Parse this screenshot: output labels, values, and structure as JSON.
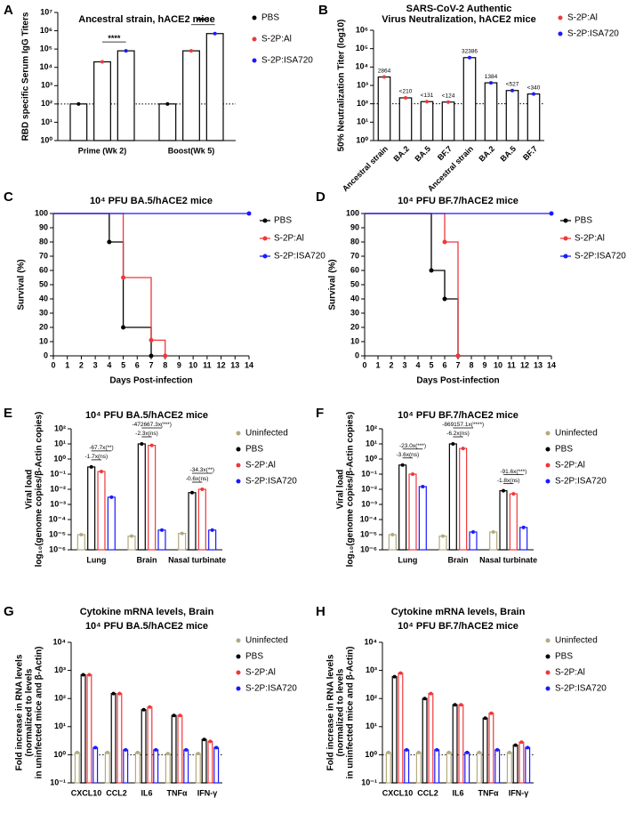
{
  "chart_data": [
    {
      "panel": "A",
      "type": "bar",
      "title": "Ancestral strain, hACE2 mice",
      "ylabel": "RBD specific Serum IgG Titers",
      "categories": [
        "Prime (Wk 2)",
        "Boost(Wk 5)"
      ],
      "log": true,
      "bar_edge": "#000000",
      "reference_line": 100,
      "series": [
        {
          "name": "PBS",
          "color": "#000000",
          "values": [
            100,
            100
          ]
        },
        {
          "name": "S-2P:Al",
          "color": "#f0373a",
          "values": [
            20000,
            80000
          ]
        },
        {
          "name": "S-2P:ISA720",
          "color": "#1a1aff",
          "values": [
            80000,
            700000
          ]
        }
      ],
      "ylim": [
        1,
        10000000
      ],
      "yticks": [
        {
          "value": 1,
          "label": "10⁰"
        },
        {
          "value": 10,
          "label": "10¹"
        },
        {
          "value": 100,
          "label": "10²"
        },
        {
          "value": 1000,
          "label": "10³"
        },
        {
          "value": 10000,
          "label": "10⁴"
        },
        {
          "value": 100000,
          "label": "10⁵"
        },
        {
          "value": 1000000,
          "label": "10⁶"
        },
        {
          "value": 10000000,
          "label": "10⁷"
        }
      ],
      "annotations": [
        "****",
        "****"
      ]
    },
    {
      "panel": "B",
      "type": "bar",
      "title": [
        "SARS-CoV-2 Authentic",
        "Virus Neutralization, hACE2 mice"
      ],
      "ylabel": "50% Neutralization Titer (log10)",
      "categories": [
        "Ancestral strain",
        "BA.2",
        "BA.5",
        "BF.7",
        "Ancestral strain",
        "BA.2",
        "BA.5",
        "BF.7"
      ],
      "log": true,
      "bar_edge": "#000000",
      "reference_line": 100,
      "rotate_categories": true,
      "series": [
        {
          "name": "S-2P:Al",
          "color": "#f0373a",
          "values": [
            2864,
            210,
            131,
            124,
            null,
            null,
            null,
            null
          ],
          "value_labels": [
            "2864",
            "<210",
            "<131",
            "<124",
            null,
            null,
            null,
            null
          ]
        },
        {
          "name": "S-2P:ISA720",
          "color": "#1a1aff",
          "values": [
            null,
            null,
            null,
            null,
            32386,
            1384,
            527,
            340
          ],
          "value_labels": [
            null,
            null,
            null,
            null,
            "32386",
            "1384",
            "<527",
            "<340"
          ]
        }
      ],
      "ylim": [
        1,
        1000000
      ],
      "yticks": [
        {
          "value": 1,
          "label": "10⁰"
        },
        {
          "value": 10,
          "label": "10¹"
        },
        {
          "value": 100,
          "label": "10²"
        },
        {
          "value": 1000,
          "label": "10³"
        },
        {
          "value": 10000,
          "label": "10⁴"
        },
        {
          "value": 100000,
          "label": "10⁵"
        },
        {
          "value": 1000000,
          "label": "10⁶"
        }
      ]
    },
    {
      "panel": "C",
      "type": "line",
      "title": "10⁴ PFU BA.5/hACE2 mice",
      "xlabel": "Days Post-infection",
      "ylabel": "Survival (%)",
      "series": [
        {
          "name": "PBS",
          "color": "#000000",
          "x": [
            0,
            4,
            5,
            7
          ],
          "values": [
            100,
            80,
            20,
            0
          ]
        },
        {
          "name": "S-2P:Al",
          "color": "#f0373a",
          "x": [
            0,
            5,
            7,
            8
          ],
          "values": [
            100,
            55,
            11,
            0
          ]
        },
        {
          "name": "S-2P:ISA720",
          "color": "#1a1aff",
          "x": [
            0,
            14
          ],
          "values": [
            100,
            100
          ]
        }
      ],
      "xlim": [
        0,
        14
      ],
      "xticks": [
        0,
        1,
        2,
        3,
        4,
        5,
        6,
        7,
        8,
        9,
        10,
        11,
        12,
        13,
        14
      ],
      "ylim": [
        0,
        100
      ],
      "yticks": [
        0,
        10,
        20,
        30,
        40,
        50,
        60,
        70,
        80,
        90,
        100
      ]
    },
    {
      "panel": "D",
      "type": "line",
      "title": "10⁴ PFU BF.7/hACE2 mice",
      "xlabel": "Days Post-infection",
      "ylabel": "Survival (%)",
      "series": [
        {
          "name": "PBS",
          "color": "#000000",
          "x": [
            0,
            5,
            6,
            7
          ],
          "values": [
            100,
            60,
            40,
            0
          ]
        },
        {
          "name": "S-2P:Al",
          "color": "#f0373a",
          "x": [
            0,
            6,
            7
          ],
          "values": [
            100,
            80,
            0
          ]
        },
        {
          "name": "S-2P:ISA720",
          "color": "#1a1aff",
          "x": [
            0,
            14
          ],
          "values": [
            100,
            100
          ]
        }
      ],
      "xlim": [
        0,
        14
      ],
      "xticks": [
        0,
        1,
        2,
        3,
        4,
        5,
        6,
        7,
        8,
        9,
        10,
        11,
        12,
        13,
        14
      ],
      "ylim": [
        0,
        100
      ],
      "yticks": [
        0,
        10,
        20,
        30,
        40,
        50,
        60,
        70,
        80,
        90,
        100
      ]
    },
    {
      "panel": "E",
      "type": "bar",
      "title": "10⁴ PFU BA.5/hACE2 mice",
      "ylabel": [
        "Viral load",
        "log₁₀(genome copies/β-Actin copies)"
      ],
      "categories": [
        "Lung",
        "Brain",
        "Nasal turbinate"
      ],
      "log": true,
      "series": [
        {
          "name": "Uninfected",
          "color": "#b3aa7e",
          "values": [
            1e-05,
            8e-06,
            1.2e-05
          ]
        },
        {
          "name": "PBS",
          "color": "#000000",
          "values": [
            0.3,
            10,
            0.006
          ]
        },
        {
          "name": "S-2P:Al",
          "color": "#f0373a",
          "values": [
            0.15,
            8,
            0.01
          ]
        },
        {
          "name": "S-2P:ISA720",
          "color": "#1a1aff",
          "values": [
            0.003,
            2e-05,
            2e-05
          ]
        }
      ],
      "ylim": [
        1e-06,
        100
      ],
      "yticks": [
        {
          "value": 1e-06,
          "label": "10⁻⁶"
        },
        {
          "value": 1e-05,
          "label": "10⁻⁵"
        },
        {
          "value": 0.0001,
          "label": "10⁻⁴"
        },
        {
          "value": 0.001,
          "label": "10⁻³"
        },
        {
          "value": 0.01,
          "label": "10⁻²"
        },
        {
          "value": 0.1,
          "label": "10⁻¹"
        },
        {
          "value": 1,
          "label": "10⁰"
        },
        {
          "value": 10,
          "label": "10¹"
        },
        {
          "value": 100,
          "label": "10²"
        }
      ],
      "annotations": [
        "-67.7x(**)",
        "-1.7x(ns)",
        "-472667.3x(***)",
        "-2.3x(ns)",
        "-34.3x(**)",
        "-0.6x(ns)"
      ]
    },
    {
      "panel": "F",
      "type": "bar",
      "title": "10⁴ PFU BF.7/hACE2 mice",
      "ylabel": [
        "Viral load",
        "log₁₀(genome copies/β-Actin copies)"
      ],
      "categories": [
        "Lung",
        "Brain",
        "Nasal turbinate"
      ],
      "log": true,
      "series": [
        {
          "name": "Uninfected",
          "color": "#b3aa7e",
          "values": [
            1e-05,
            8e-06,
            1.5e-05
          ]
        },
        {
          "name": "PBS",
          "color": "#000000",
          "values": [
            0.4,
            10,
            0.008
          ]
        },
        {
          "name": "S-2P:Al",
          "color": "#f0373a",
          "values": [
            0.1,
            5,
            0.005
          ]
        },
        {
          "name": "S-2P:ISA720",
          "color": "#1a1aff",
          "values": [
            0.015,
            1.5e-05,
            3e-05
          ]
        }
      ],
      "ylim": [
        1e-06,
        100
      ],
      "yticks": [
        {
          "value": 1e-06,
          "label": "10⁻⁶"
        },
        {
          "value": 1e-05,
          "label": "10⁻⁵"
        },
        {
          "value": 0.0001,
          "label": "10⁻⁴"
        },
        {
          "value": 0.001,
          "label": "10⁻³"
        },
        {
          "value": 0.01,
          "label": "10⁻²"
        },
        {
          "value": 0.1,
          "label": "10⁻¹"
        },
        {
          "value": 1,
          "label": "10⁰"
        },
        {
          "value": 10,
          "label": "10¹"
        },
        {
          "value": 100,
          "label": "10²"
        }
      ],
      "annotations": [
        "-23.0x(***)",
        "-3.6x(ns)",
        "-869157.1x(****)",
        "-6.2x(ns)",
        "-91.6x(***)",
        "-1.8x(ns)"
      ]
    },
    {
      "panel": "G",
      "type": "bar",
      "title": "Cytokine mRNA levels, Brain",
      "subtitle": "10⁴ PFU BA.5/hACE2 mice",
      "ylabel": [
        "Fold increase in RNA levels",
        "(normalized to levels",
        "in uninfected mice and β-Actin)"
      ],
      "categories": [
        "CXCL10",
        "CCL2",
        "IL6",
        "TNFα",
        "IFN-γ"
      ],
      "log": true,
      "reference_line": 1,
      "series": [
        {
          "name": "Uninfected",
          "color": "#b3aa7e",
          "values": [
            1.2,
            1.2,
            1.2,
            1.1,
            1.1
          ]
        },
        {
          "name": "PBS",
          "color": "#000000",
          "values": [
            700,
            150,
            40,
            25,
            3.5
          ]
        },
        {
          "name": "S-2P:Al",
          "color": "#f0373a",
          "values": [
            700,
            150,
            50,
            25,
            3
          ]
        },
        {
          "name": "S-2P:ISA720",
          "color": "#1a1aff",
          "values": [
            1.8,
            1.5,
            1.5,
            1.5,
            1.8
          ]
        }
      ],
      "ylim": [
        0.1,
        10000
      ],
      "yticks": [
        {
          "value": 0.1,
          "label": "10⁻¹"
        },
        {
          "value": 1,
          "label": "10⁰"
        },
        {
          "value": 10,
          "label": "10¹"
        },
        {
          "value": 100,
          "label": "10²"
        },
        {
          "value": 1000,
          "label": "10³"
        },
        {
          "value": 10000,
          "label": "10⁴"
        }
      ]
    },
    {
      "panel": "H",
      "type": "bar",
      "title": "Cytokine mRNA levels, Brain",
      "subtitle": "10⁴ PFU BF.7/hACE2 mice",
      "ylabel": [
        "Fold increase in RNA levels",
        "(normalized to levels",
        "in uninfected mice and β-Actin)"
      ],
      "categories": [
        "CXCL10",
        "CCL2",
        "IL6",
        "TNFα",
        "IFN-γ"
      ],
      "log": true,
      "reference_line": 1,
      "series": [
        {
          "name": "Uninfected",
          "color": "#b3aa7e",
          "values": [
            1.2,
            1.2,
            1.2,
            1.2,
            1.2
          ]
        },
        {
          "name": "PBS",
          "color": "#000000",
          "values": [
            600,
            100,
            60,
            20,
            2.2
          ]
        },
        {
          "name": "S-2P:Al",
          "color": "#f0373a",
          "values": [
            800,
            150,
            60,
            30,
            2.8
          ]
        },
        {
          "name": "S-2P:ISA720",
          "color": "#1a1aff",
          "values": [
            1.5,
            1.5,
            1.2,
            1.5,
            1.8
          ]
        }
      ],
      "ylim": [
        0.1,
        10000
      ],
      "yticks": [
        {
          "value": 0.1,
          "label": "10⁻¹"
        },
        {
          "value": 1,
          "label": "10⁰"
        },
        {
          "value": 10,
          "label": "10¹"
        },
        {
          "value": 100,
          "label": "10²"
        },
        {
          "value": 1000,
          "label": "10³"
        },
        {
          "value": 10000,
          "label": "10⁴"
        }
      ]
    }
  ]
}
